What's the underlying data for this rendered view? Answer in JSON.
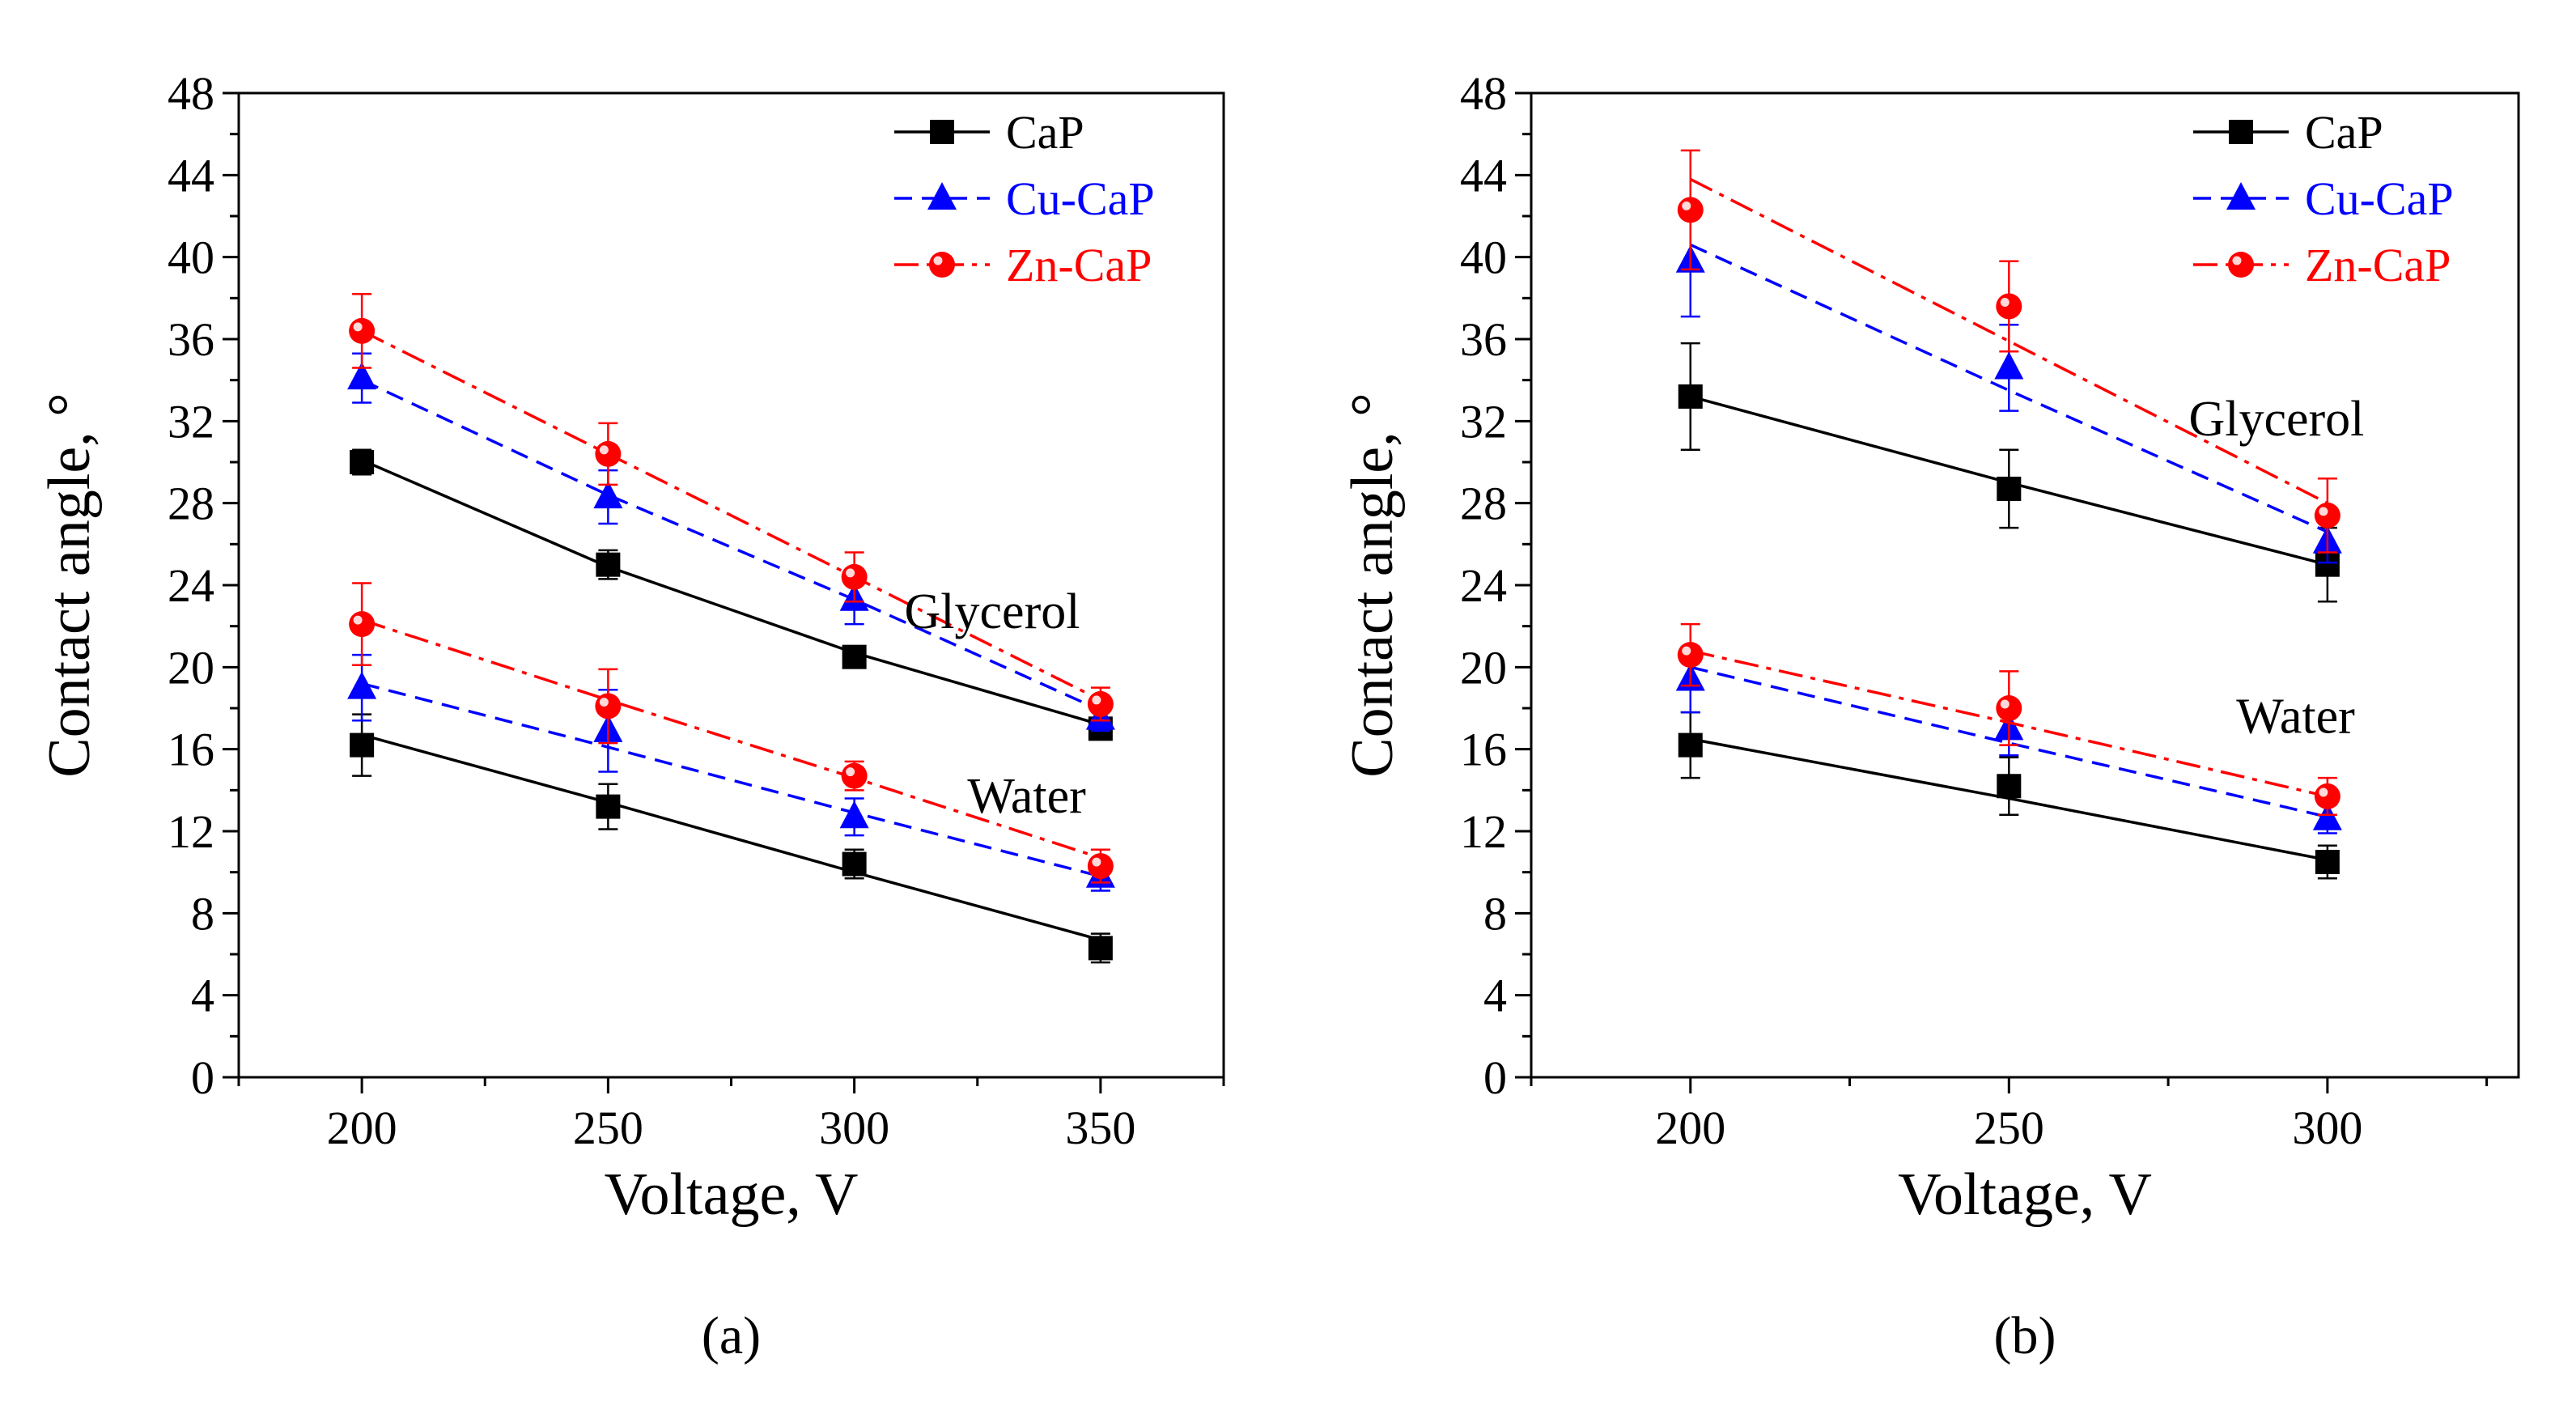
{
  "chart_data": [
    {
      "type": "line",
      "panel": "a",
      "caption": "(a)",
      "xlabel": "Voltage, V",
      "ylabel": "Contact angle, °",
      "x": [
        200,
        250,
        300,
        350
      ],
      "xticks": [
        "200",
        "250",
        "300",
        "350"
      ],
      "xlim": [
        175,
        375
      ],
      "ylim": [
        0,
        48
      ],
      "yticks": [
        "0",
        "4",
        "8",
        "12",
        "16",
        "20",
        "24",
        "28",
        "32",
        "36",
        "40",
        "44",
        "48"
      ],
      "legend": {
        "position": "top-right",
        "entries": [
          "CaP",
          "Cu-CaP",
          "Zn-CaP"
        ]
      },
      "annotations": [
        {
          "text": "Glycerol",
          "at": [
            328,
            21.9
          ]
        },
        {
          "text": "Water",
          "at": [
            335,
            12.9
          ]
        }
      ],
      "series": [
        {
          "name": "CaP",
          "liquid": "Glycerol",
          "style": "solid",
          "marker": "square",
          "color": "#000000",
          "values": [
            30.0,
            25.0,
            20.5,
            17.0
          ],
          "errors": [
            0.6,
            0.7,
            0.5,
            0.4
          ],
          "fit": [
            30.1,
            24.9,
            20.7,
            17.2
          ]
        },
        {
          "name": "Cu-CaP",
          "liquid": "Glycerol",
          "style": "dashed",
          "marker": "triangle",
          "color": "#0000ff",
          "values": [
            34.1,
            28.3,
            23.3,
            17.5
          ],
          "errors": [
            1.2,
            1.3,
            1.2,
            0.6
          ],
          "fit": [
            34.0,
            28.4,
            23.3,
            17.9
          ]
        },
        {
          "name": "Zn-CaP",
          "liquid": "Glycerol",
          "style": "dashdot",
          "marker": "circle",
          "color": "#ff0000",
          "values": [
            36.4,
            30.4,
            24.4,
            18.2
          ],
          "errors": [
            1.8,
            1.5,
            1.2,
            0.8
          ],
          "fit": [
            36.4,
            30.4,
            24.4,
            18.4
          ]
        },
        {
          "name": "CaP",
          "liquid": "Water",
          "style": "solid",
          "marker": "square",
          "color": "#000000",
          "values": [
            16.2,
            13.2,
            10.4,
            6.3
          ],
          "errors": [
            1.5,
            1.1,
            0.7,
            0.7
          ],
          "fit": [
            16.7,
            13.4,
            10.0,
            6.7
          ]
        },
        {
          "name": "Cu-CaP",
          "liquid": "Water",
          "style": "dashed",
          "marker": "triangle",
          "color": "#0000ff",
          "values": [
            19.0,
            16.9,
            12.7,
            9.8
          ],
          "errors": [
            1.6,
            2.0,
            0.9,
            0.7
          ],
          "fit": [
            19.2,
            16.1,
            12.9,
            9.8
          ]
        },
        {
          "name": "Zn-CaP",
          "liquid": "Water",
          "style": "dashdot",
          "marker": "circle",
          "color": "#ff0000",
          "values": [
            22.1,
            18.1,
            14.7,
            10.3
          ],
          "errors": [
            2.0,
            1.8,
            0.7,
            0.8
          ],
          "fit": [
            22.3,
            18.4,
            14.6,
            10.7
          ]
        }
      ]
    },
    {
      "type": "line",
      "panel": "b",
      "caption": "(b)",
      "xlabel": "Voltage, V",
      "ylabel": "Contact angle, °",
      "x": [
        200,
        250,
        300
      ],
      "xticks": [
        "200",
        "250",
        "300"
      ],
      "xlim": [
        175,
        330
      ],
      "ylim": [
        0,
        48
      ],
      "yticks": [
        "0",
        "4",
        "8",
        "12",
        "16",
        "20",
        "24",
        "28",
        "32",
        "36",
        "40",
        "44",
        "48"
      ],
      "legend": {
        "position": "top-right",
        "entries": [
          "CaP",
          "Cu-CaP",
          "Zn-CaP"
        ]
      },
      "annotations": [
        {
          "text": "Glycerol",
          "at": [
            292,
            31.3
          ]
        },
        {
          "text": "Water",
          "at": [
            295,
            16.8
          ]
        }
      ],
      "series": [
        {
          "name": "CaP",
          "liquid": "Glycerol",
          "style": "solid",
          "marker": "square",
          "color": "#000000",
          "values": [
            33.2,
            28.7,
            25.0
          ],
          "errors": [
            2.6,
            1.9,
            1.8
          ],
          "fit": [
            33.2,
            29.0,
            25.0
          ]
        },
        {
          "name": "Cu-CaP",
          "liquid": "Glycerol",
          "style": "dashed",
          "marker": "triangle",
          "color": "#0000ff",
          "values": [
            39.8,
            34.6,
            26.1
          ],
          "errors": [
            2.7,
            2.1,
            1.0
          ],
          "fit": [
            40.6,
            33.5,
            26.6
          ]
        },
        {
          "name": "Zn-CaP",
          "liquid": "Glycerol",
          "style": "dashdot",
          "marker": "circle",
          "color": "#ff0000",
          "values": [
            42.3,
            37.6,
            27.4
          ],
          "errors": [
            2.9,
            2.2,
            1.8
          ],
          "fit": [
            43.8,
            35.9,
            28.0
          ]
        },
        {
          "name": "CaP",
          "liquid": "Water",
          "style": "solid",
          "marker": "square",
          "color": "#000000",
          "values": [
            16.2,
            14.2,
            10.5
          ],
          "errors": [
            1.6,
            1.4,
            0.8
          ],
          "fit": [
            16.5,
            13.6,
            10.6
          ]
        },
        {
          "name": "Cu-CaP",
          "liquid": "Water",
          "style": "dashed",
          "marker": "triangle",
          "color": "#0000ff",
          "values": [
            19.4,
            17.0,
            12.6
          ],
          "errors": [
            1.6,
            1.3,
            0.7
          ],
          "fit": [
            20.0,
            16.3,
            12.7
          ]
        },
        {
          "name": "Zn-CaP",
          "liquid": "Water",
          "style": "dashdot",
          "marker": "circle",
          "color": "#ff0000",
          "values": [
            20.6,
            18.0,
            13.7
          ],
          "errors": [
            1.5,
            1.8,
            0.9
          ],
          "fit": [
            20.8,
            17.3,
            13.7
          ]
        }
      ]
    }
  ]
}
